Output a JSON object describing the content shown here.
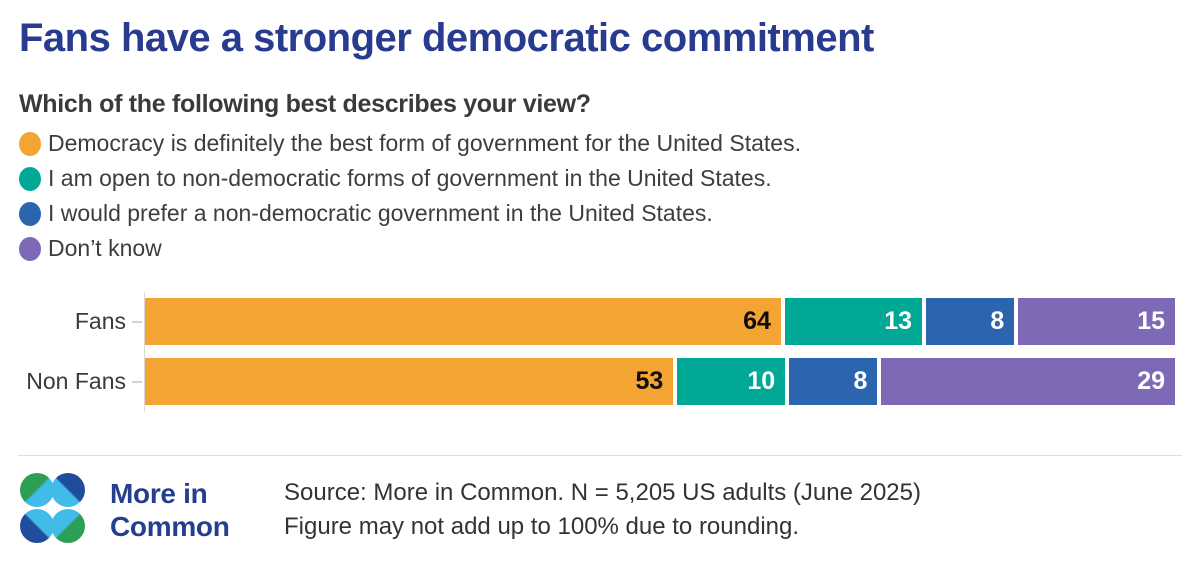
{
  "title": "Fans have a stronger democratic commitment",
  "question": "Which of the following best describes your view?",
  "legend": [
    {
      "label": "Democracy is definitely the best form of government for the United States.",
      "color": "#F4A433"
    },
    {
      "label": "I am open to non-democratic forms of government in the United States.",
      "color": "#00A896"
    },
    {
      "label": "I would prefer a non-democratic government in the United States.",
      "color": "#2B65AE"
    },
    {
      "label": "Don’t know",
      "color": "#7D69B6"
    }
  ],
  "chart_data": {
    "type": "bar",
    "orientation": "horizontal",
    "stacked": true,
    "categories": [
      "Fans",
      "Non Fans"
    ],
    "series": [
      {
        "name": "Democracy is definitely the best form of government for the United States.",
        "color": "#F4A433",
        "values": [
          64,
          53
        ]
      },
      {
        "name": "I am open to non-democratic forms of government in the United States.",
        "color": "#00A896",
        "values": [
          13,
          10
        ]
      },
      {
        "name": "I would prefer a non-democratic government in the United States.",
        "color": "#2B65AE",
        "values": [
          8,
          8
        ]
      },
      {
        "name": "Don’t know",
        "color": "#7D69B6",
        "values": [
          15,
          29
        ]
      }
    ],
    "xlim": [
      0,
      100
    ],
    "value_labels": "inside-right",
    "grid": false,
    "legend_position": "top-left",
    "title": "Fans have a stronger democratic commitment"
  },
  "colors": {
    "title": "#283B8F",
    "text": "#3A3A3A",
    "axis": "#D9D9D9",
    "first_segment_label": "#0D0D0D",
    "segment_label": "#FFFFFF"
  },
  "footer": {
    "logo_line1": "More in",
    "logo_line2": "Common",
    "source_line1": "Source: More in Common. N = 5,205 US adults (June 2025)",
    "source_line2": "Figure may not add up to 100% due to rounding."
  }
}
